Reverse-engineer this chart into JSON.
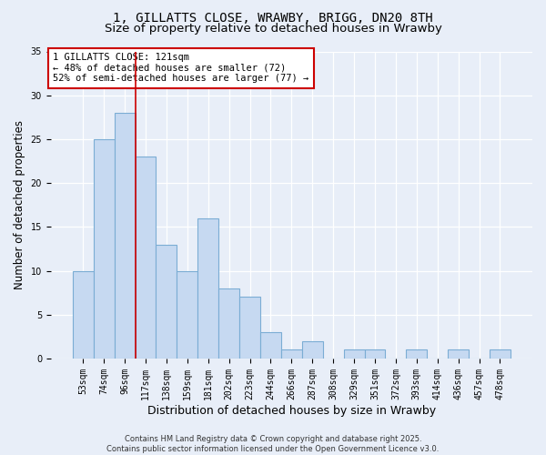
{
  "title": "1, GILLATTS CLOSE, WRAWBY, BRIGG, DN20 8TH",
  "subtitle": "Size of property relative to detached houses in Wrawby",
  "xlabel": "Distribution of detached houses by size in Wrawby",
  "ylabel": "Number of detached properties",
  "bar_values": [
    10,
    25,
    28,
    23,
    13,
    10,
    16,
    8,
    7,
    3,
    1,
    2,
    0,
    1,
    1,
    0,
    1,
    0,
    1,
    0,
    1
  ],
  "categories": [
    "53sqm",
    "74sqm",
    "96sqm",
    "117sqm",
    "138sqm",
    "159sqm",
    "181sqm",
    "202sqm",
    "223sqm",
    "244sqm",
    "266sqm",
    "287sqm",
    "308sqm",
    "329sqm",
    "351sqm",
    "372sqm",
    "393sqm",
    "414sqm",
    "436sqm",
    "457sqm",
    "478sqm"
  ],
  "bar_color": "#c6d9f1",
  "bar_edgecolor": "#7badd4",
  "bar_linewidth": 0.8,
  "vline_x": 2.5,
  "vline_color": "#cc0000",
  "vline_linewidth": 1.2,
  "annotation_text": "1 GILLATTS CLOSE: 121sqm\n← 48% of detached houses are smaller (72)\n52% of semi-detached houses are larger (77) →",
  "annotation_box_facecolor": "#ffffff",
  "annotation_box_edgecolor": "#cc0000",
  "ylim": [
    0,
    35
  ],
  "yticks": [
    0,
    5,
    10,
    15,
    20,
    25,
    30,
    35
  ],
  "background_color": "#e8eef8",
  "grid_color": "#ffffff",
  "footer_text": "Contains HM Land Registry data © Crown copyright and database right 2025.\nContains public sector information licensed under the Open Government Licence v3.0.",
  "title_fontsize": 10,
  "subtitle_fontsize": 9.5,
  "xlabel_fontsize": 9,
  "ylabel_fontsize": 8.5,
  "tick_fontsize": 7,
  "annotation_fontsize": 7.5,
  "footer_fontsize": 6
}
